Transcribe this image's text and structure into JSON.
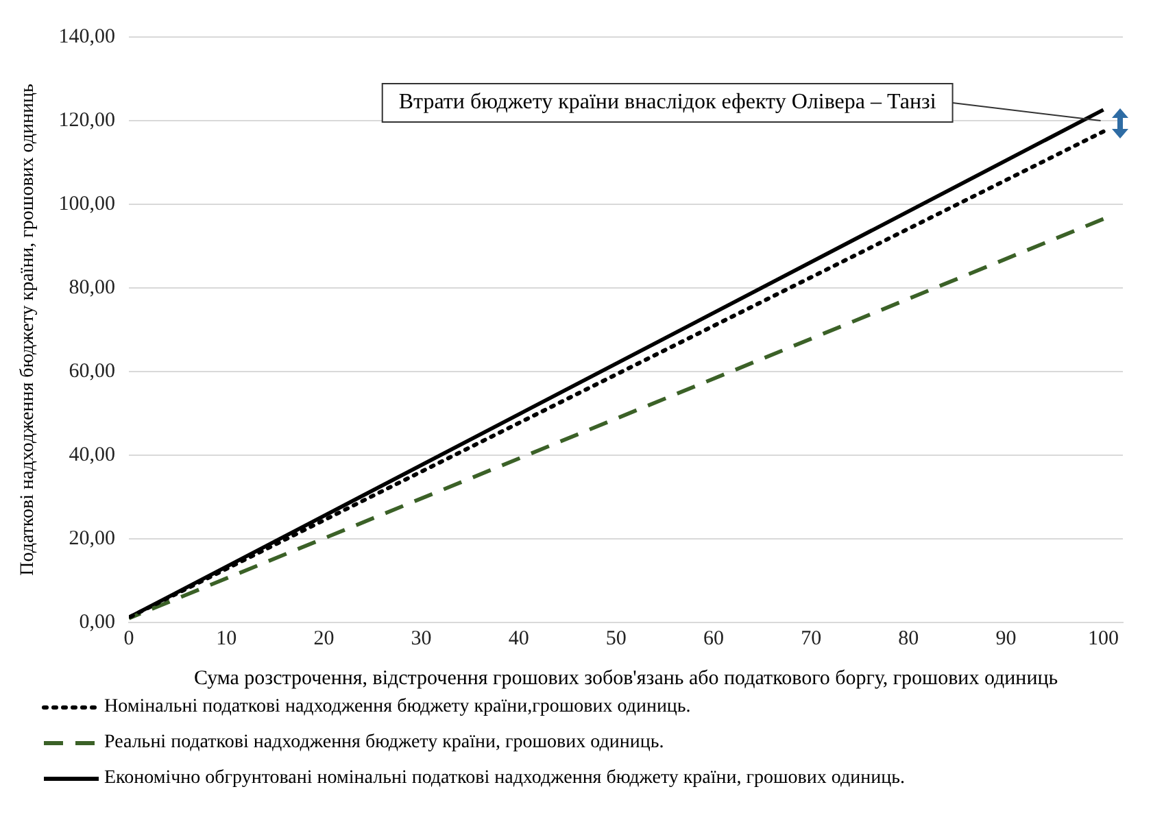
{
  "chart_data": {
    "type": "line",
    "xlabel": "Сума розстрочення, відстрочення грошових зобов'язань або податкового боргу, грошових одиниць",
    "ylabel": "Податкові надходження бюджету країни, грошових одиниць",
    "x": [
      0,
      100
    ],
    "series": [
      {
        "name": "Номінальні  податкові надходження бюджету країни,грошових одиниць.",
        "color": "#000000",
        "line_style": "dotted",
        "values": [
          1.2,
          117.4
        ]
      },
      {
        "name": "Реальні  податкові надходження бюджету країни,  грошових одиниць.",
        "color": "#3b6127",
        "line_style": "dashed",
        "values": [
          1.0,
          96.5
        ]
      },
      {
        "name": "Економічно обгрунтовані номінальні  податкові надходження бюджету країни,  грошових одиниць.",
        "color": "#000000",
        "line_style": "solid",
        "values": [
          1.2,
          122.6
        ]
      }
    ],
    "xlim": [
      0,
      102
    ],
    "xticks": [
      0,
      10,
      20,
      30,
      40,
      50,
      60,
      70,
      80,
      90,
      100
    ],
    "ylim": [
      0,
      140
    ],
    "yticks": [
      {
        "value": 0,
        "label": "0,00"
      },
      {
        "value": 20,
        "label": "20,00"
      },
      {
        "value": 40,
        "label": "40,00"
      },
      {
        "value": 60,
        "label": "60,00"
      },
      {
        "value": 80,
        "label": "80,00"
      },
      {
        "value": 100,
        "label": "100,00"
      },
      {
        "value": 120,
        "label": "120,00"
      },
      {
        "value": 140,
        "label": "140,00"
      }
    ],
    "annotations": [
      "Втрати бюджету країни внаслідок ефекту Олівера – Танзі"
    ],
    "grid": "y",
    "legend": "bottom",
    "marker": "none"
  }
}
